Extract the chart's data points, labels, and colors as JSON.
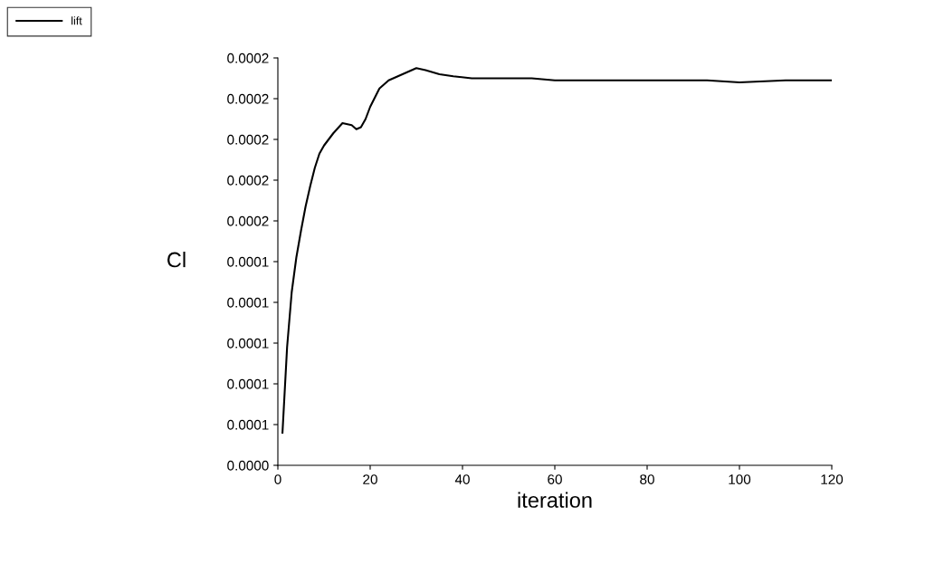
{
  "chart_data": {
    "type": "line",
    "xlabel": "iteration",
    "ylabel": "Cl",
    "x": [
      1,
      2,
      3,
      4,
      5,
      6,
      7,
      8,
      9,
      10,
      12,
      14,
      16,
      17,
      18,
      19,
      20,
      22,
      24,
      26,
      28,
      30,
      32,
      35,
      38,
      42,
      50,
      55,
      60,
      67,
      75,
      85,
      93,
      100,
      110,
      120
    ],
    "series": [
      {
        "name": "lift",
        "color": "#000000",
        "values": [
          5.6e-05,
          9.8e-05,
          0.000125,
          0.000142,
          0.000155,
          0.000167,
          0.000177,
          0.000186,
          0.000193,
          0.000197,
          0.000203,
          0.000208,
          0.000207,
          0.000205,
          0.000206,
          0.00021,
          0.000216,
          0.000225,
          0.000229,
          0.000231,
          0.000233,
          0.000235,
          0.000234,
          0.000232,
          0.000231,
          0.00023,
          0.00023,
          0.00023,
          0.000229,
          0.000229,
          0.000229,
          0.000229,
          0.000229,
          0.000228,
          0.000229,
          0.000229
        ]
      }
    ],
    "xlim": [
      0,
      120
    ],
    "xticks": [
      0,
      20,
      40,
      60,
      80,
      100,
      120
    ],
    "ylim": [
      4e-05,
      0.00024
    ],
    "yticks": [
      {
        "value": 4e-05,
        "label": "0.0000"
      },
      {
        "value": 6e-05,
        "label": "0.0001"
      },
      {
        "value": 8e-05,
        "label": "0.0001"
      },
      {
        "value": 0.0001,
        "label": "0.0001"
      },
      {
        "value": 0.00012,
        "label": "0.0001"
      },
      {
        "value": 0.00014,
        "label": "0.0001"
      },
      {
        "value": 0.00016,
        "label": "0.0002"
      },
      {
        "value": 0.00018,
        "label": "0.0002"
      },
      {
        "value": 0.0002,
        "label": "0.0002"
      },
      {
        "value": 0.00022,
        "label": "0.0002"
      },
      {
        "value": 0.00024,
        "label": "0.0002"
      }
    ],
    "legend": "top left",
    "grid": false,
    "marker": "none",
    "line_style": "solid"
  }
}
